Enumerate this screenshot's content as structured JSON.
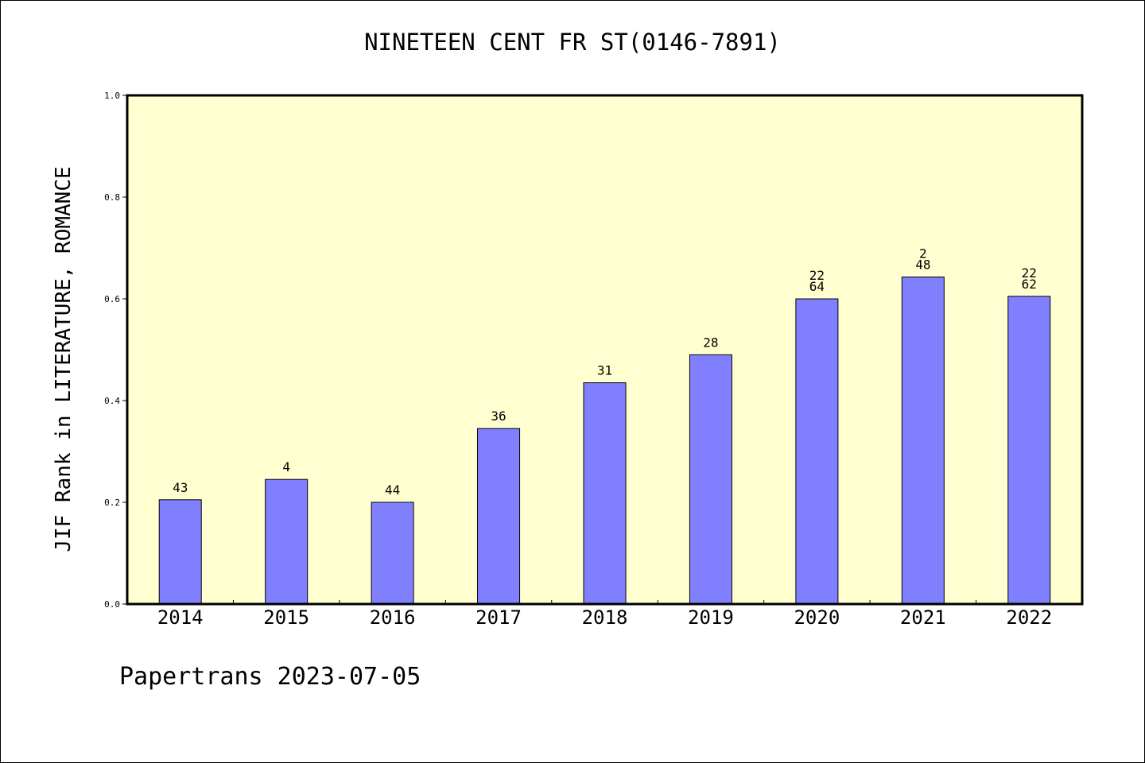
{
  "chart_data": {
    "type": "bar",
    "title": "NINETEEN CENT FR ST(0146-7891)",
    "ylabel": "JIF Rank in LITERATURE, ROMANCE",
    "xlabel": "",
    "ylim": [
      0,
      1.0
    ],
    "yticks": [
      "0.0",
      "0.2",
      "0.4",
      "0.6",
      "0.8",
      "1.0"
    ],
    "categories": [
      "2014",
      "2015",
      "2016",
      "2017",
      "2018",
      "2019",
      "2020",
      "2021",
      "2022"
    ],
    "values": [
      0.205,
      0.245,
      0.2,
      0.345,
      0.435,
      0.49,
      0.6,
      0.643,
      0.605
    ],
    "bar_labels": [
      [
        "43"
      ],
      [
        "4"
      ],
      [
        "44"
      ],
      [
        "36"
      ],
      [
        "31"
      ],
      [
        "28"
      ],
      [
        "22",
        "64"
      ],
      [
        "2",
        "48"
      ],
      [
        "22",
        "62"
      ]
    ],
    "plot_background": "#ffffd0",
    "bar_color": "#8080ff",
    "grid": false,
    "legend": "none"
  },
  "footer": {
    "text": "Papertrans 2023-07-05"
  }
}
